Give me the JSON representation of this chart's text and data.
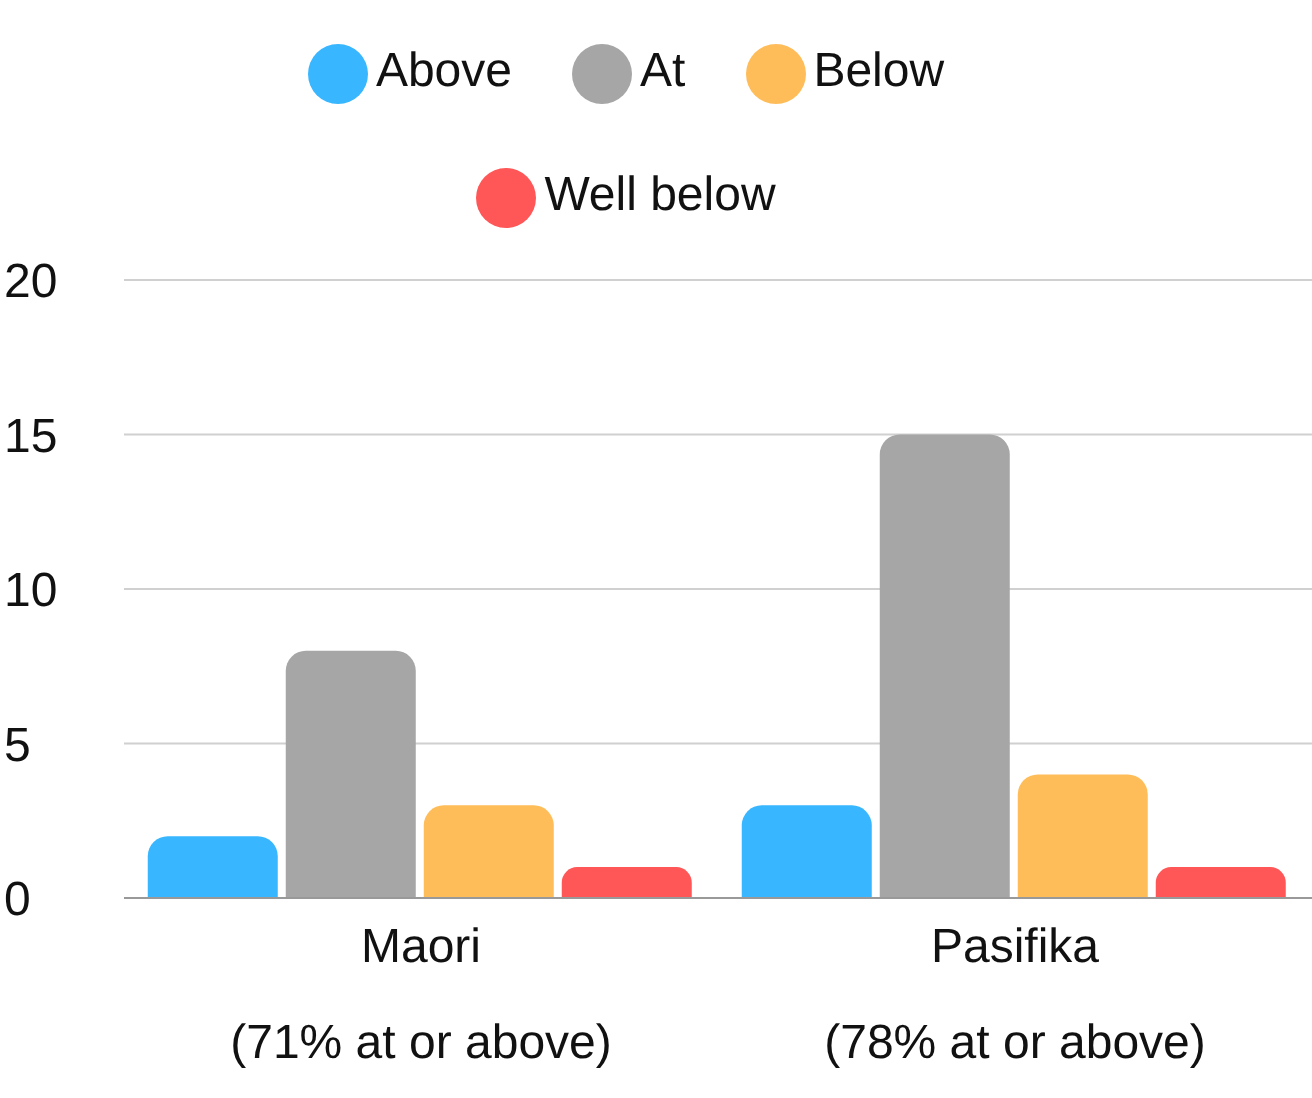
{
  "chart_data": {
    "type": "bar",
    "categories": [
      "Maori\n(71% at or above)",
      "Pasifika\n(78% at or above)"
    ],
    "series": [
      {
        "name": "Above",
        "color": "#38b6ff",
        "values": [
          2,
          3
        ]
      },
      {
        "name": "At",
        "color": "#a6a6a6",
        "values": [
          8,
          15
        ]
      },
      {
        "name": "Below",
        "color": "#ffbd59",
        "values": [
          3,
          4
        ]
      },
      {
        "name": "Well below",
        "color": "#ff5757",
        "values": [
          1,
          1
        ]
      }
    ],
    "ylim": [
      0,
      20
    ],
    "yticks": [
      0,
      5,
      10,
      15,
      20
    ],
    "grid": "y",
    "legend": "top"
  }
}
